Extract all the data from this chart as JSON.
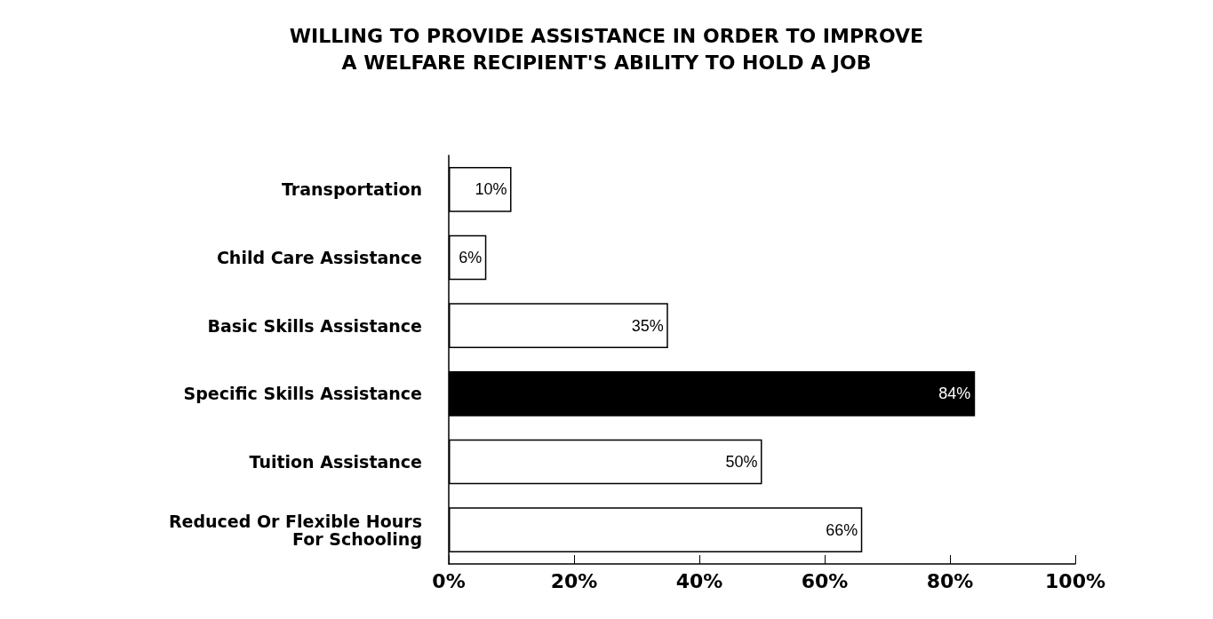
{
  "chart_data": {
    "type": "bar",
    "orientation": "horizontal",
    "title": "WILLING TO PROVIDE ASSISTANCE IN ORDER TO IMPROVE\nA WELFARE RECIPIENT'S ABILITY TO HOLD A JOB",
    "categories": [
      "Transportation",
      "Child Care Assistance",
      "Basic Skills Assistance",
      "Specific Skills Assistance",
      "Tuition Assistance",
      "Reduced Or Flexible Hours\nFor Schooling"
    ],
    "values": [
      10,
      6,
      35,
      84,
      50,
      66
    ],
    "colors": [
      "#ffffff",
      "#ffffff",
      "#ffffff",
      "#000000",
      "#ffffff",
      "#ffffff"
    ],
    "value_labels": [
      "10%",
      "6%",
      "35%",
      "84%",
      "50%",
      "66%"
    ],
    "xlim": [
      0,
      100
    ],
    "xticks": [
      {
        "value": 0,
        "label": "0%"
      },
      {
        "value": 20,
        "label": "20%"
      },
      {
        "value": 40,
        "label": "40%"
      },
      {
        "value": 60,
        "label": "60%"
      },
      {
        "value": 80,
        "label": "80%"
      },
      {
        "value": 100,
        "label": "100%"
      }
    ],
    "grid": false
  }
}
